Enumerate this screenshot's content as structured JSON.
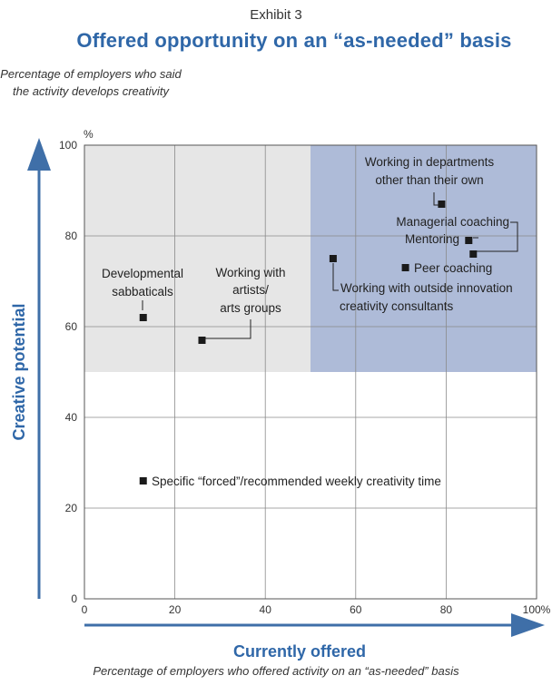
{
  "header": {
    "exhibit": "Exhibit 3",
    "title": "Offered opportunity on an “as-needed” basis"
  },
  "chart_data": {
    "type": "scatter",
    "y_note": "Percentage of employers who said the activity develops creativity",
    "x_note": "Percentage of employers who offered activity on an “as-needed” basis",
    "xlabel": "Currently offered",
    "ylabel": "Creative potential",
    "y_unit": "%",
    "xlim": [
      0,
      100
    ],
    "ylim": [
      0,
      100
    ],
    "x_ticks": [
      "0",
      "20",
      "40",
      "60",
      "80",
      "100%"
    ],
    "y_ticks": [
      "0",
      "20",
      "40",
      "60",
      "80",
      "100"
    ],
    "grid": true,
    "regions": [
      {
        "x": [
          0,
          50
        ],
        "y": [
          50,
          100
        ],
        "color": "#e6e6e6"
      },
      {
        "x": [
          50,
          100
        ],
        "y": [
          50,
          100
        ],
        "color": "#aebbd8"
      }
    ],
    "points": [
      {
        "label": "Developmental sabbaticals",
        "x": 13,
        "y": 62
      },
      {
        "label": "Working with artists/ arts groups",
        "x": 26,
        "y": 57
      },
      {
        "label": "Working with outside innovation creativity consultants",
        "x": 55,
        "y": 75
      },
      {
        "label": "Peer coaching",
        "x": 71,
        "y": 73
      },
      {
        "label": "Working in departments other than their own",
        "x": 79,
        "y": 87
      },
      {
        "label": "Managerial coaching",
        "x": 86,
        "y": 76
      },
      {
        "label": "Mentoring",
        "x": 85,
        "y": 79
      },
      {
        "label": "Specific “forced”/recommended weekly creativity time",
        "x": 13,
        "y": 26
      }
    ],
    "accent_color": "#3f6fa8"
  }
}
